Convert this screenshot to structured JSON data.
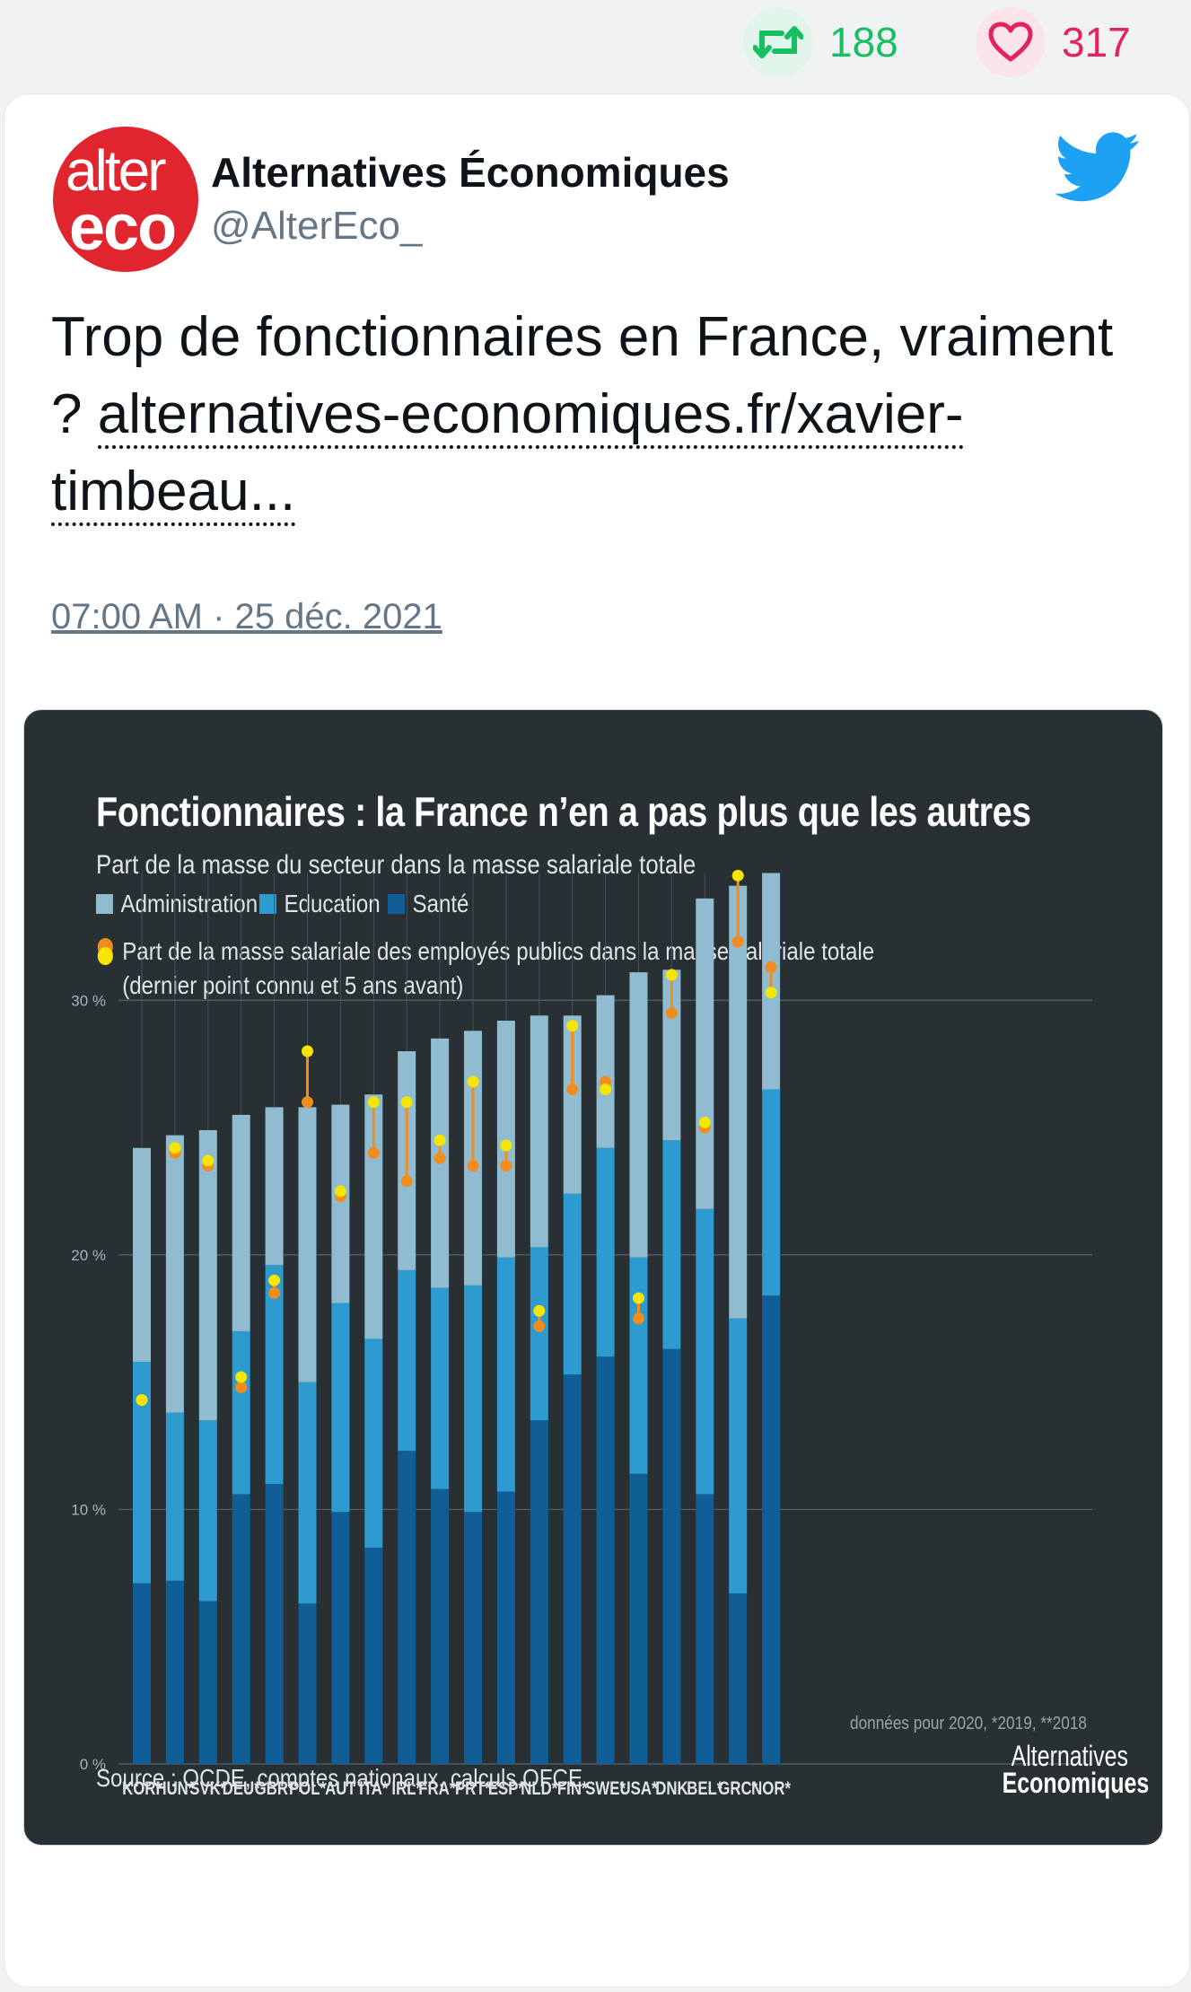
{
  "top_stats": {
    "retweets": "188",
    "likes": "317"
  },
  "author": {
    "avatar_line1": "alter",
    "avatar_line2": "eco",
    "name": "Alternatives Économiques",
    "handle": "@AlterEco_"
  },
  "tweet": {
    "text": "Trop de fonctionnaires en France, vraiment ? ",
    "link": "alternatives-economiques.fr/xavier-timbeau...",
    "timestamp": "07:00 AM · 25 déc. 2021"
  },
  "colors": {
    "retweet": "#17bf63",
    "like": "#e0245e",
    "twitter_blue": "#1da1f2",
    "admin": "#8fbcd0",
    "education": "#2e9bd0",
    "sante": "#0f5f96",
    "point_recent": "#f6e500",
    "point_old": "#f28c1e"
  },
  "chart_header": {
    "title": "Fonctionnaires : la France n’en a pas plus que les autres",
    "subtitle": "Part de la masse du secteur dans la masse salariale totale",
    "legend_admin": "Administration",
    "legend_education": "Education",
    "legend_sante": "Santé",
    "legend_points_line1": "Part de la masse salariale des employés publics dans la masse salariale totale",
    "legend_points_line2": "(dernier point connu et 5 ans avant)",
    "note": "données pour 2020, *2019, **2018",
    "source": "Source : OCDE, comptes nationaux, calculs OFCE",
    "brand_line1": "Alternatives",
    "brand_line2": "Economiques"
  },
  "chart_data": {
    "type": "bar",
    "stacked": true,
    "categories": [
      "KOR*",
      "HUN*",
      "SVK*",
      "DEU*",
      "GBR*",
      "POL*",
      "AUT",
      "ITA*",
      "IRL*",
      "FRA**",
      "PRT*",
      "ESP*",
      "NLD*",
      "FIN*",
      "SWE*",
      "USA*",
      "DNK",
      "BEL*",
      "GRC*",
      "NOR*"
    ],
    "yticks": [
      "0 %",
      "10 %",
      "20 %",
      "30 %"
    ],
    "ylim": [
      0,
      35
    ],
    "series": [
      {
        "name": "Santé",
        "values": [
          7.1,
          7.2,
          6.4,
          10.6,
          11.0,
          6.3,
          9.9,
          8.5,
          12.3,
          10.8,
          9.9,
          10.7,
          13.5,
          15.3,
          16.0,
          11.4,
          16.3,
          10.6,
          6.7,
          18.4
        ]
      },
      {
        "name": "Education",
        "values": [
          8.7,
          6.6,
          7.1,
          6.4,
          8.6,
          8.7,
          8.2,
          8.2,
          7.1,
          7.9,
          8.9,
          9.2,
          6.8,
          7.1,
          8.2,
          8.5,
          8.2,
          11.2,
          10.8,
          8.1
        ]
      },
      {
        "name": "Administration",
        "values": [
          8.4,
          10.9,
          11.4,
          8.5,
          6.2,
          10.8,
          7.8,
          9.6,
          8.6,
          9.8,
          10.0,
          9.3,
          9.1,
          7.0,
          6.0,
          11.2,
          6.7,
          12.2,
          17.0,
          8.5
        ]
      }
    ],
    "points_recent": [
      14.3,
      24.2,
      23.7,
      15.2,
      19.0,
      28.0,
      22.5,
      26.0,
      26.0,
      24.5,
      26.8,
      24.3,
      17.8,
      29.0,
      26.5,
      18.3,
      31.0,
      25.2,
      34.9,
      30.3
    ],
    "points_5y_before": [
      14.3,
      24.0,
      23.5,
      14.8,
      18.5,
      26.0,
      22.3,
      24.0,
      22.9,
      23.8,
      23.5,
      23.5,
      17.2,
      26.5,
      26.8,
      17.5,
      29.5,
      25.0,
      32.3,
      31.3
    ]
  }
}
